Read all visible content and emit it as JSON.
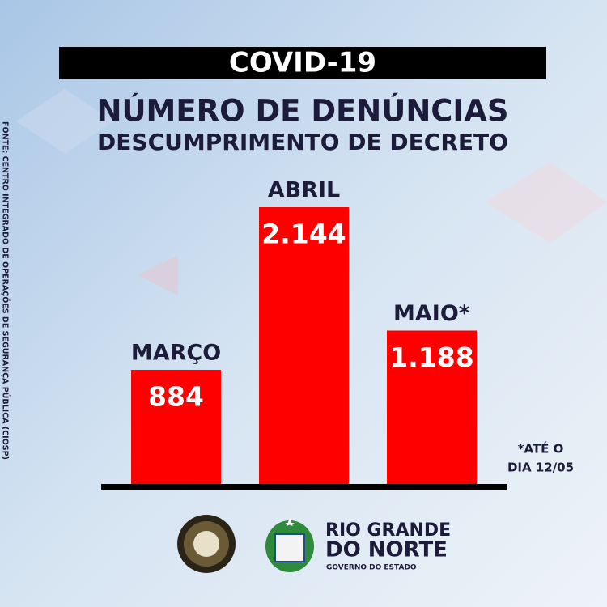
{
  "chart_data": {
    "type": "bar",
    "title": "COVID-19",
    "subtitle": [
      "NÚMERO DE DENÚNCIAS",
      "DESCUMPRIMENTO DE DECRETO"
    ],
    "categories": [
      "MARÇO",
      "ABRIL",
      "MAIO*"
    ],
    "values": [
      884,
      2144,
      1188
    ],
    "value_labels": [
      "884",
      "2.144",
      "1.188"
    ],
    "color": "#ff0000",
    "note": [
      "*ATÉ O",
      "DIA 12/05"
    ],
    "source": "FONTE: CENTRO INTEGRADO DE OPERAÇÕES DE SEGURANÇA PÚBLICA (CIOSP)"
  },
  "footer": {
    "logo_lines": [
      "RIO GRANDE",
      "DO NORTE",
      "GOVERNO DO ESTADO"
    ]
  }
}
